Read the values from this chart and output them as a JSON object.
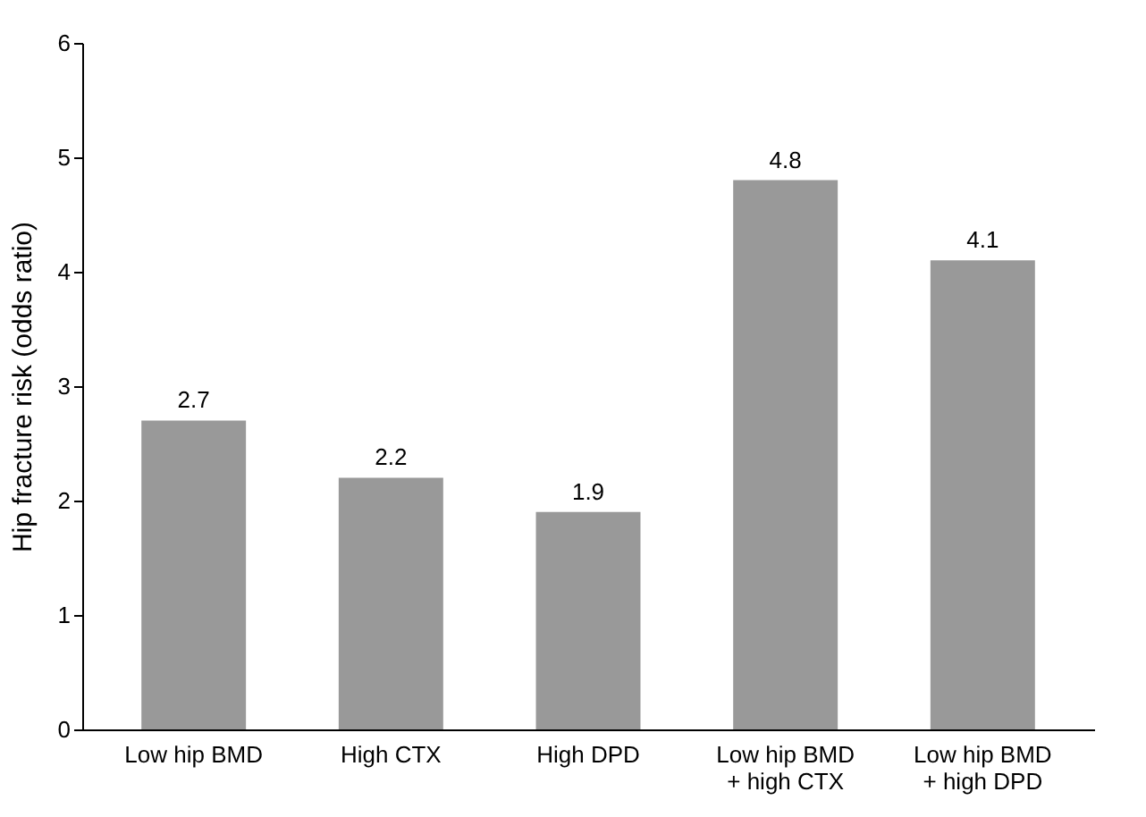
{
  "chart_data": {
    "type": "bar",
    "ylabel": "Hip fracture risk (odds ratio)",
    "categories": [
      "Low hip BMD",
      "High CTX",
      "High DPD",
      "Low hip BMD + high CTX",
      "Low hip BMD + high DPD"
    ],
    "values": [
      2.7,
      2.2,
      1.9,
      4.8,
      4.1
    ],
    "color": "#999999",
    "ylim": [
      0,
      6
    ],
    "yticks": [
      0,
      1,
      2,
      3,
      4,
      5,
      6
    ],
    "grid": false,
    "data_labels": true
  }
}
